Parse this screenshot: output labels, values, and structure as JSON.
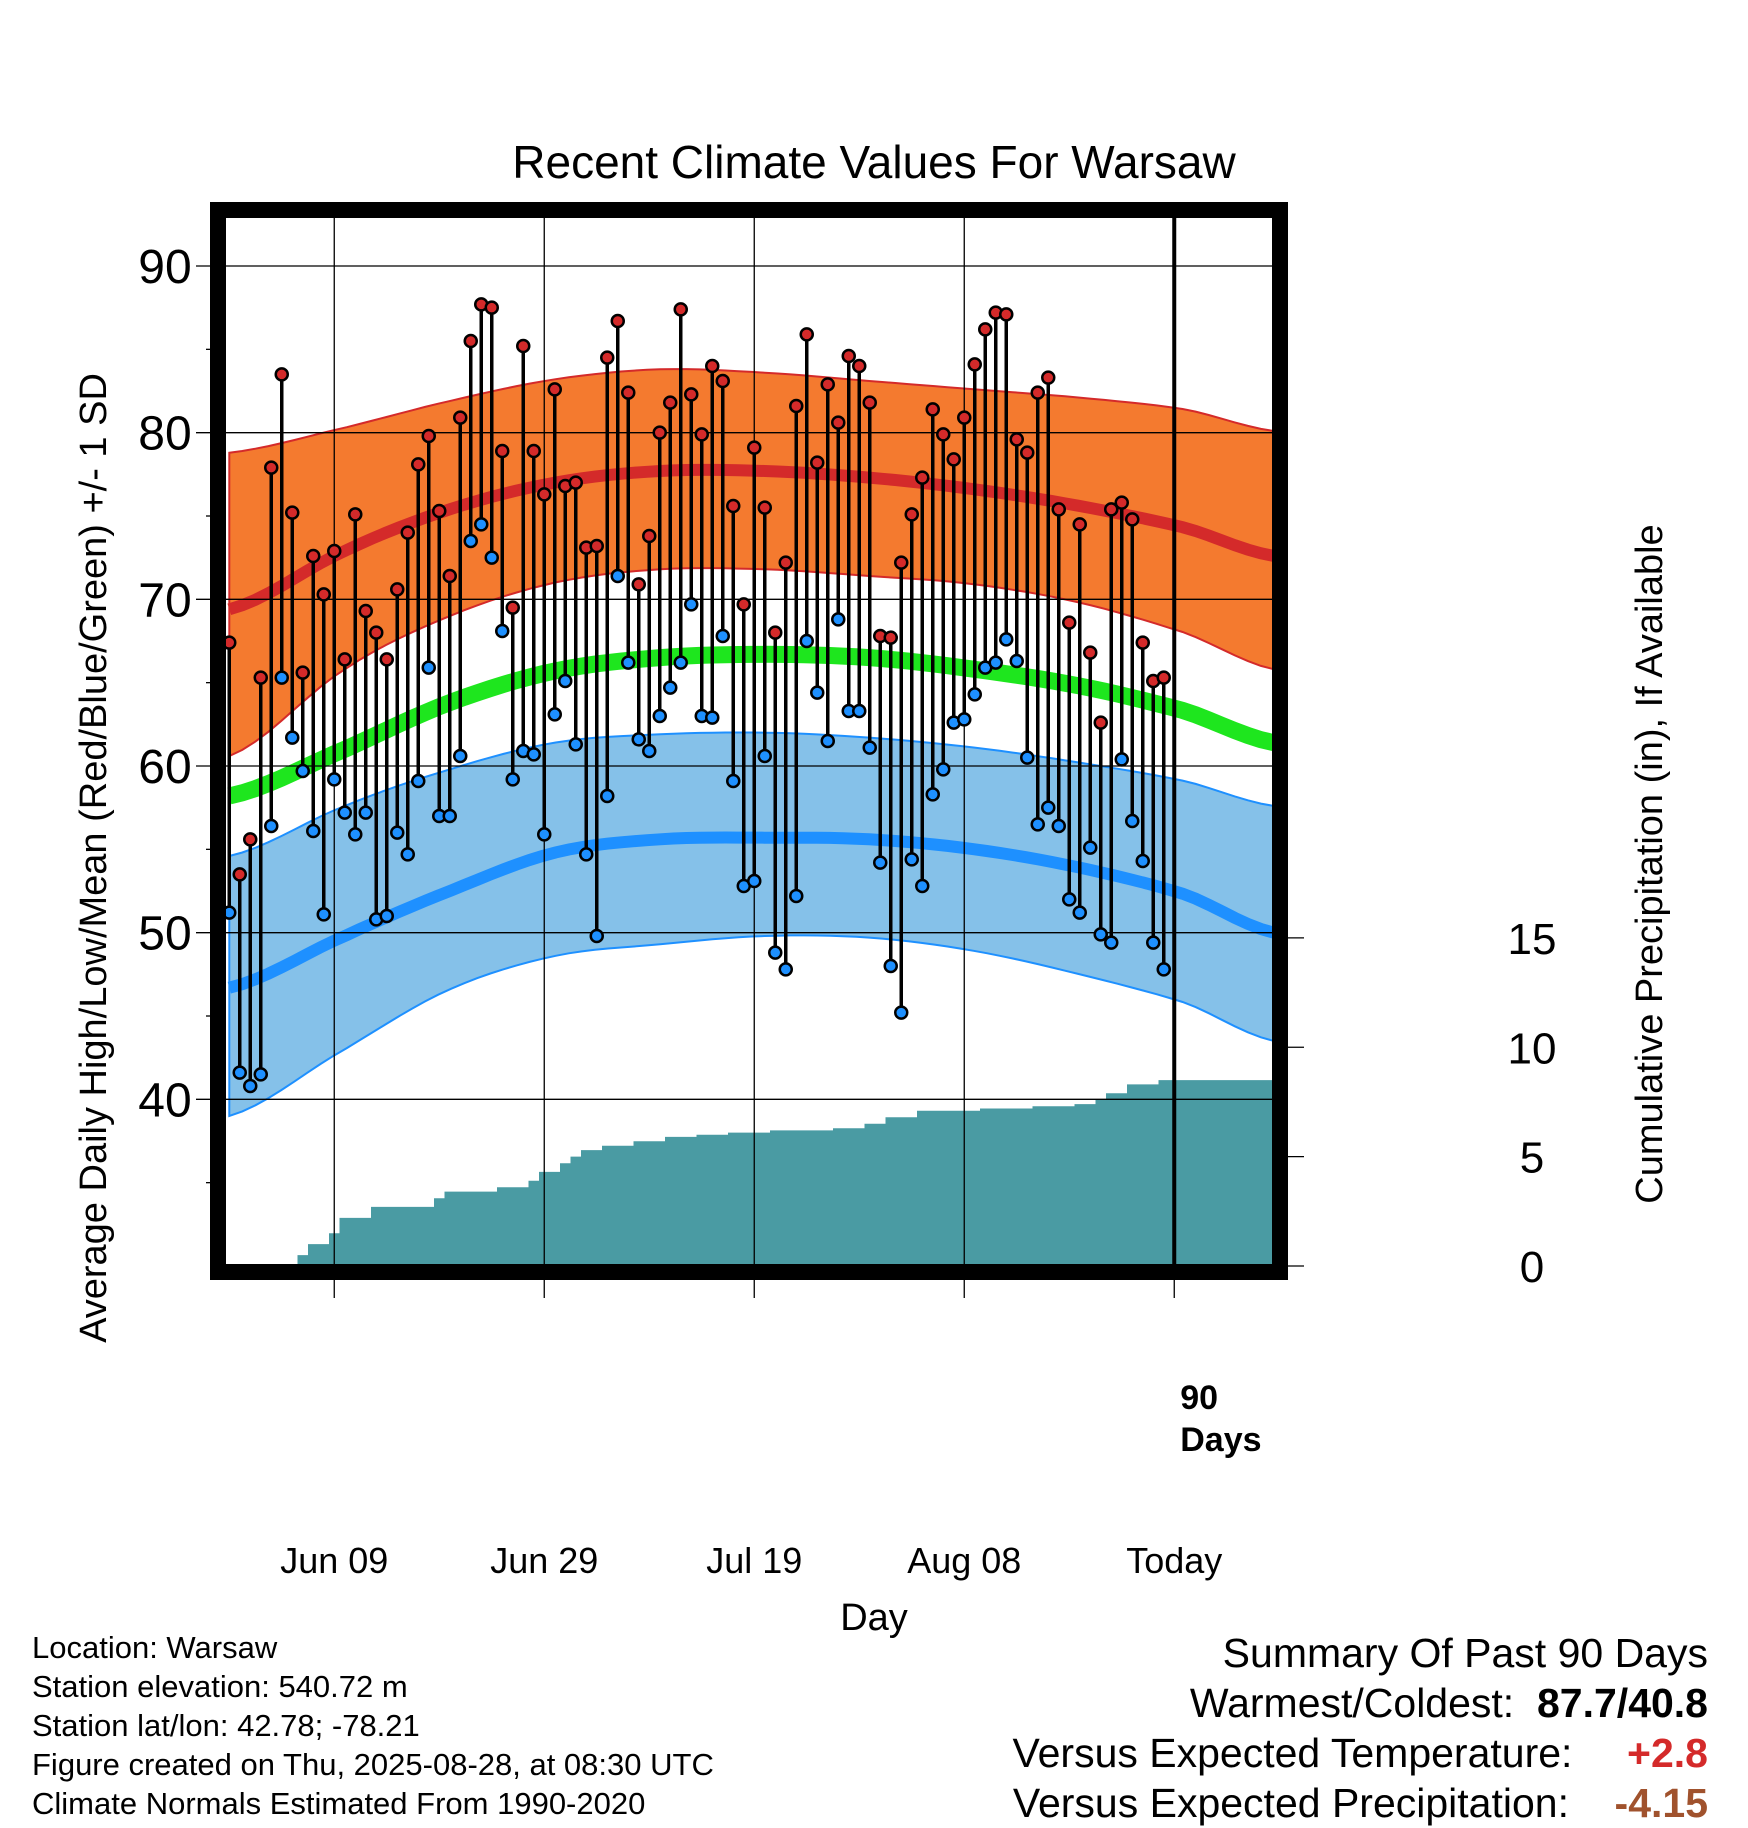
{
  "title": "Recent Climate Values For Warsaw",
  "xlabel": "Day",
  "ylabel_left": "Average Daily High/Low/Mean (Red/Blue/Green) +/- 1 SD",
  "ylabel_right": "Cumulative Precipitation (in), If Available",
  "today_label_line1": "90",
  "today_label_line2": "Days",
  "footer": {
    "location": "Location: Warsaw",
    "elevation": "Station elevation: 540.72 m",
    "latlon": "Station lat/lon: 42.78; -78.21",
    "created": "Figure created on Thu, 2025-08-28, at 08:30 UTC",
    "normals": "Climate Normals Estimated From 1990-2020"
  },
  "summary": {
    "title": "Summary Of Past 90 Days",
    "warm_cold_label": "Warmest/Coldest:",
    "warm_cold_value": "87.7/40.8",
    "temp_label": "Versus Expected Temperature:",
    "temp_value": "+2.8",
    "temp_color": "#d42a2a",
    "precip_label": "Versus Expected Precipitation:",
    "precip_value": "-4.15",
    "precip_color": "#a0522d"
  },
  "colors": {
    "high_band": "#f47a2f",
    "high_mean": "#d42a2a",
    "low_band": "#85c1e9",
    "low_mean": "#1e90ff",
    "mean_line": "#1ee61e",
    "precip_fill": "#4a9ba3",
    "high_dot": "#d42a2a",
    "low_dot": "#1e90ff"
  },
  "chart_data": {
    "type": "line",
    "x_ticks": [
      {
        "day": 9,
        "label": "Jun 09"
      },
      {
        "day": 29,
        "label": "Jun 29"
      },
      {
        "day": 49,
        "label": "Jul 19"
      },
      {
        "day": 69,
        "label": "Aug 08"
      },
      {
        "day": 89,
        "label": "Today"
      }
    ],
    "xlim": [
      -1.5,
      98.5
    ],
    "ylim_left": [
      30,
      93
    ],
    "y_ticks_left": [
      40,
      50,
      60,
      70,
      80,
      90
    ],
    "ylim_right": [
      0,
      48
    ],
    "y_ticks_right": [
      0,
      5,
      10,
      15
    ],
    "today_day": 89,
    "normals": {
      "days": [
        -1,
        10,
        20,
        30,
        40,
        50,
        60,
        70,
        80,
        90,
        98.5
      ],
      "high_mean": [
        69.4,
        72.9,
        75.4,
        77.0,
        77.7,
        77.7,
        77.3,
        76.6,
        75.6,
        74.3,
        72.6
      ],
      "high_upper": [
        78.8,
        80.3,
        81.9,
        83.2,
        83.8,
        83.6,
        83.1,
        82.6,
        82.1,
        81.4,
        80.1
      ],
      "high_lower": [
        60.6,
        65.8,
        69.0,
        71.0,
        71.8,
        71.8,
        71.4,
        70.9,
        69.8,
        68.0,
        65.8
      ],
      "low_mean": [
        46.7,
        49.8,
        52.5,
        54.8,
        55.6,
        55.7,
        55.6,
        55.0,
        53.9,
        52.3,
        50.0
      ],
      "low_upper": [
        54.6,
        57.6,
        59.8,
        61.4,
        61.9,
        62.0,
        61.7,
        61.1,
        60.2,
        59.1,
        57.6
      ],
      "low_lower": [
        39.0,
        43.0,
        46.6,
        48.6,
        49.3,
        49.8,
        49.7,
        48.9,
        47.5,
        45.8,
        43.5
      ],
      "mean": [
        58.2,
        61.0,
        63.8,
        65.7,
        66.5,
        66.7,
        66.5,
        65.8,
        64.8,
        63.3,
        61.4
      ]
    },
    "daily": {
      "start_day": -1,
      "high": [
        67.4,
        53.5,
        55.6,
        65.3,
        77.9,
        83.5,
        75.2,
        65.6,
        72.6,
        70.3,
        72.9,
        66.4,
        75.1,
        69.3,
        68.0,
        66.4,
        70.6,
        74.0,
        78.1,
        79.8,
        75.3,
        71.4,
        80.9,
        85.5,
        87.7,
        87.5,
        78.9,
        69.5,
        85.2,
        78.9,
        76.3,
        82.6,
        76.8,
        77.0,
        73.1,
        73.2,
        84.5,
        86.7,
        82.4,
        70.9,
        73.8,
        80.0,
        81.8,
        87.4,
        82.3,
        79.9,
        84.0,
        83.1,
        75.6,
        69.7,
        79.1,
        75.5,
        68.0,
        72.2,
        81.6,
        85.9,
        78.2,
        82.9,
        80.6,
        84.6,
        84.0,
        81.8,
        67.8,
        67.7,
        72.2,
        75.1,
        77.3,
        81.4,
        79.9,
        78.4,
        80.9,
        84.1,
        86.2,
        87.2,
        87.1,
        79.6,
        78.8,
        82.4,
        83.3,
        75.4,
        68.6,
        74.5,
        66.8,
        62.6,
        75.4,
        75.8,
        74.8,
        67.4,
        65.1,
        65.3
      ],
      "low": [
        51.2,
        41.6,
        40.8,
        41.5,
        56.4,
        65.3,
        61.7,
        59.7,
        56.1,
        51.1,
        59.2,
        57.2,
        55.9,
        57.2,
        50.8,
        51.0,
        56.0,
        54.7,
        59.1,
        65.9,
        57.0,
        57.0,
        60.6,
        73.5,
        74.5,
        72.5,
        68.1,
        59.2,
        60.9,
        60.7,
        55.9,
        63.1,
        65.1,
        61.3,
        54.7,
        49.8,
        58.2,
        71.4,
        66.2,
        61.6,
        60.9,
        63.0,
        64.7,
        66.2,
        69.7,
        63.0,
        62.9,
        67.8,
        59.1,
        52.8,
        53.1,
        60.6,
        48.8,
        47.8,
        52.2,
        67.5,
        64.4,
        61.5,
        68.8,
        63.3,
        63.3,
        61.1,
        54.2,
        48.0,
        45.2,
        54.4,
        52.8,
        58.3,
        59.8,
        62.6,
        62.8,
        64.3,
        65.9,
        66.2,
        67.6,
        66.3,
        60.5,
        56.5,
        57.5,
        56.4,
        52.0,
        51.2,
        55.1,
        49.9,
        49.4,
        60.4,
        56.7,
        54.3,
        49.4,
        47.8
      ]
    },
    "precip": {
      "days": [
        5.5,
        6.5,
        8.5,
        9.5,
        12.5,
        18.5,
        19.5,
        24.5,
        27.5,
        28.5,
        30.5,
        31.5,
        32.5,
        34.5,
        37.5,
        40.5,
        43.5,
        46.5,
        50.5,
        56.5,
        59.5,
        61.5,
        64.5,
        70.5,
        75.5,
        79.5,
        81.5,
        82.5,
        84.5,
        87.5,
        98.5
      ],
      "values": [
        0.5,
        1.0,
        1.5,
        2.2,
        2.7,
        3.1,
        3.4,
        3.6,
        3.9,
        4.3,
        4.7,
        5.0,
        5.3,
        5.5,
        5.7,
        5.9,
        6.0,
        6.1,
        6.2,
        6.3,
        6.5,
        6.8,
        7.1,
        7.2,
        7.3,
        7.4,
        7.6,
        7.9,
        8.3,
        8.5,
        8.7
      ]
    }
  }
}
